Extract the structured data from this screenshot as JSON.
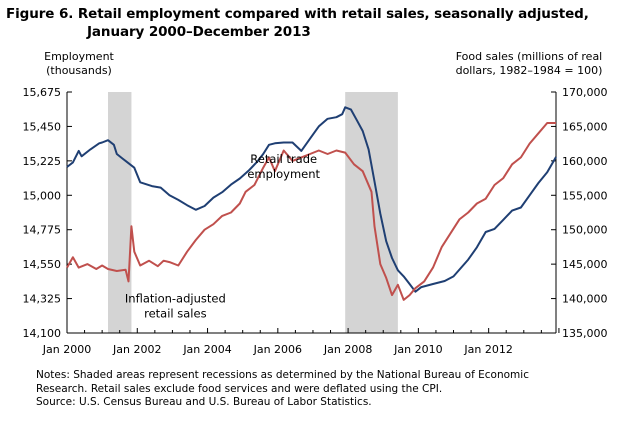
{
  "title_line1": "Figure 6. Retail employment compared with retail sales, seasonally adjusted,",
  "title_line2": "January 2000–December 2013",
  "left_axis_title": [
    "Employment",
    "(thousands)"
  ],
  "right_axis_title": [
    "Food sales (millions of real",
    "dollars, 1982–1984 = 100)"
  ],
  "notes": [
    "Notes: Shaded areas represent recessions as determined by the National Bureau of Economic",
    "Research. Retail sales exclude food services and were deflated using the CPI.",
    "Source: U.S. Census Bureau and U.S. Bureau of Labor Statistics."
  ],
  "chart_data": {
    "type": "line",
    "x_ticks": [
      "Jan 2000",
      "Jan 2002",
      "Jan 2004",
      "Jan 2006",
      "Jan 2008",
      "Jan 2010",
      "Jan 2012"
    ],
    "y_left_ticks": [
      "14,100",
      "14,325",
      "14,550",
      "14,775",
      "15,000",
      "15,225",
      "15,450",
      "15,675"
    ],
    "y_right_ticks": [
      "135,000",
      "140,000",
      "145,000",
      "150,000",
      "155,000",
      "160,000",
      "165,000",
      "170,000"
    ],
    "ylim_left": [
      14100,
      15675
    ],
    "ylim_right": [
      135000,
      170000
    ],
    "x_range": [
      "2000-01",
      "2013-12"
    ],
    "recessions": [
      [
        "2001-03",
        "2001-11"
      ],
      [
        "2007-12",
        "2009-06"
      ]
    ],
    "colors": {
      "employment": "#1f3f73",
      "sales": "#c0504d",
      "recession": "#d4d4d4"
    },
    "annotations": [
      {
        "lines": [
          "Retail trade",
          "employment"
        ],
        "at": [
          "2006-03",
          15210
        ]
      },
      {
        "lines": [
          "Inflation-adjusted",
          "retail sales"
        ],
        "at": [
          "2003-02",
          14300
        ]
      }
    ],
    "series": [
      {
        "key": "employment",
        "axis": "left",
        "points": [
          [
            "2000-01",
            15185
          ],
          [
            "2000-03",
            15215
          ],
          [
            "2000-05",
            15290
          ],
          [
            "2000-06",
            15255
          ],
          [
            "2000-09",
            15300
          ],
          [
            "2000-12",
            15340
          ],
          [
            "2001-01",
            15345
          ],
          [
            "2001-03",
            15360
          ],
          [
            "2001-05",
            15330
          ],
          [
            "2001-06",
            15270
          ],
          [
            "2001-08",
            15240
          ],
          [
            "2001-10",
            15210
          ],
          [
            "2001-12",
            15180
          ],
          [
            "2002-02",
            15085
          ],
          [
            "2002-06",
            15060
          ],
          [
            "2002-09",
            15050
          ],
          [
            "2002-12",
            15000
          ],
          [
            "2003-03",
            14970
          ],
          [
            "2003-06",
            14935
          ],
          [
            "2003-09",
            14905
          ],
          [
            "2003-12",
            14930
          ],
          [
            "2004-03",
            14985
          ],
          [
            "2004-06",
            15020
          ],
          [
            "2004-09",
            15070
          ],
          [
            "2004-12",
            15110
          ],
          [
            "2005-03",
            15160
          ],
          [
            "2005-06",
            15220
          ],
          [
            "2005-08",
            15270
          ],
          [
            "2005-10",
            15330
          ],
          [
            "2005-12",
            15340
          ],
          [
            "2006-03",
            15345
          ],
          [
            "2006-06",
            15345
          ],
          [
            "2006-09",
            15290
          ],
          [
            "2006-12",
            15370
          ],
          [
            "2007-03",
            15450
          ],
          [
            "2007-06",
            15500
          ],
          [
            "2007-09",
            15510
          ],
          [
            "2007-11",
            15530
          ],
          [
            "2007-12",
            15575
          ],
          [
            "2008-02",
            15560
          ],
          [
            "2008-04",
            15490
          ],
          [
            "2008-06",
            15420
          ],
          [
            "2008-08",
            15300
          ],
          [
            "2008-10",
            15090
          ],
          [
            "2008-12",
            14880
          ],
          [
            "2009-02",
            14700
          ],
          [
            "2009-04",
            14590
          ],
          [
            "2009-06",
            14510
          ],
          [
            "2009-08",
            14470
          ],
          [
            "2009-10",
            14420
          ],
          [
            "2009-12",
            14370
          ],
          [
            "2010-02",
            14400
          ],
          [
            "2010-06",
            14420
          ],
          [
            "2010-10",
            14440
          ],
          [
            "2011-01",
            14470
          ],
          [
            "2011-06",
            14580
          ],
          [
            "2011-09",
            14660
          ],
          [
            "2011-12",
            14760
          ],
          [
            "2012-03",
            14780
          ],
          [
            "2012-06",
            14840
          ],
          [
            "2012-09",
            14900
          ],
          [
            "2012-12",
            14920
          ],
          [
            "2013-03",
            15000
          ],
          [
            "2013-06",
            15080
          ],
          [
            "2013-09",
            15150
          ],
          [
            "2013-12",
            15250
          ]
        ]
      },
      {
        "key": "sales",
        "axis": "right",
        "points": [
          [
            "2000-01",
            144500
          ],
          [
            "2000-03",
            146000
          ],
          [
            "2000-05",
            144500
          ],
          [
            "2000-08",
            145000
          ],
          [
            "2000-11",
            144300
          ],
          [
            "2001-01",
            144800
          ],
          [
            "2001-03",
            144300
          ],
          [
            "2001-06",
            144000
          ],
          [
            "2001-09",
            144200
          ],
          [
            "2001-10",
            142500
          ],
          [
            "2001-11",
            150500
          ],
          [
            "2001-12",
            146800
          ],
          [
            "2002-02",
            144800
          ],
          [
            "2002-05",
            145500
          ],
          [
            "2002-08",
            144700
          ],
          [
            "2002-10",
            145500
          ],
          [
            "2002-12",
            145300
          ],
          [
            "2003-03",
            144800
          ],
          [
            "2003-06",
            146800
          ],
          [
            "2003-09",
            148500
          ],
          [
            "2003-12",
            150000
          ],
          [
            "2004-03",
            150800
          ],
          [
            "2004-06",
            152000
          ],
          [
            "2004-09",
            152500
          ],
          [
            "2004-12",
            153800
          ],
          [
            "2005-02",
            155500
          ],
          [
            "2005-05",
            156500
          ],
          [
            "2005-08",
            159000
          ],
          [
            "2005-10",
            160500
          ],
          [
            "2005-12",
            158500
          ],
          [
            "2006-03",
            161500
          ],
          [
            "2006-06",
            160000
          ],
          [
            "2006-09",
            160500
          ],
          [
            "2006-12",
            161000
          ],
          [
            "2007-03",
            161500
          ],
          [
            "2007-06",
            161000
          ],
          [
            "2007-09",
            161500
          ],
          [
            "2007-12",
            161200
          ],
          [
            "2008-03",
            159500
          ],
          [
            "2008-06",
            158500
          ],
          [
            "2008-09",
            155500
          ],
          [
            "2008-10",
            150500
          ],
          [
            "2008-12",
            145000
          ],
          [
            "2009-02",
            143000
          ],
          [
            "2009-04",
            140500
          ],
          [
            "2009-06",
            142000
          ],
          [
            "2009-08",
            139800
          ],
          [
            "2009-10",
            140500
          ],
          [
            "2009-12",
            141500
          ],
          [
            "2010-03",
            142500
          ],
          [
            "2010-06",
            144500
          ],
          [
            "2010-09",
            147500
          ],
          [
            "2010-12",
            149500
          ],
          [
            "2011-03",
            151500
          ],
          [
            "2011-06",
            152500
          ],
          [
            "2011-09",
            153800
          ],
          [
            "2011-12",
            154500
          ],
          [
            "2012-03",
            156500
          ],
          [
            "2012-06",
            157500
          ],
          [
            "2012-09",
            159500
          ],
          [
            "2012-12",
            160500
          ],
          [
            "2013-03",
            162500
          ],
          [
            "2013-06",
            164000
          ],
          [
            "2013-09",
            165500
          ],
          [
            "2013-12",
            165500
          ]
        ]
      }
    ]
  }
}
